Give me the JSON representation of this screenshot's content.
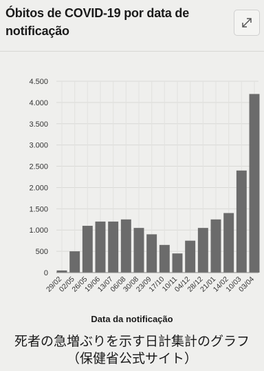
{
  "card": {
    "title": "Óbitos de COVID-19 por data de notificação",
    "expand_icon": "expand-arrows-icon"
  },
  "caption": {
    "line1": "死者の急増ぶりを示す日計集計のグラフ",
    "line2": "（保健省公式サイト）"
  },
  "chart_data": {
    "type": "bar",
    "title": "Óbitos de COVID-19 por data de notificação",
    "xlabel": "Data da notificação",
    "ylabel": "",
    "ylim": [
      0,
      4500
    ],
    "yticks": [
      0,
      500,
      1000,
      1500,
      2000,
      2500,
      3000,
      3500,
      4000,
      4500
    ],
    "ytick_labels": [
      "0",
      "500",
      "1.000",
      "1.500",
      "2.000",
      "2.500",
      "3.000",
      "3.500",
      "4.000",
      "4.500"
    ],
    "xtick_labels": [
      "29/02",
      "02/05",
      "26/05",
      "19/06",
      "13/07",
      "06/08",
      "30/08",
      "23/09",
      "17/10",
      "10/11",
      "04/12",
      "28/12",
      "21/01",
      "14/02",
      "10/03",
      "03/04"
    ],
    "grid": true,
    "bar_color": "#6b6b6b",
    "categories": [
      "29/02",
      "02/05",
      "26/05",
      "19/06",
      "13/07",
      "06/08",
      "30/08",
      "23/09",
      "17/10",
      "10/11",
      "04/12",
      "28/12",
      "21/01",
      "14/02",
      "10/03",
      "03/04"
    ],
    "values": [
      50,
      500,
      1100,
      1200,
      1200,
      1250,
      1050,
      900,
      650,
      450,
      750,
      1050,
      1250,
      1400,
      2400,
      4200
    ]
  }
}
